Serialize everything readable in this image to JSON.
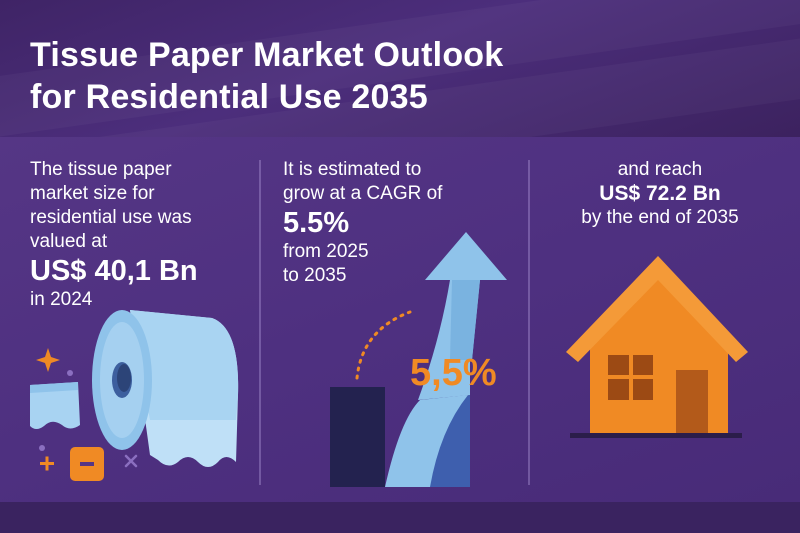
{
  "title": {
    "line1": "Tissue Paper Market Outlook",
    "line2": "for Residential Use 2035"
  },
  "col1": {
    "line1": "The tissue paper",
    "line2": "market size for",
    "line3": "residential use was",
    "line4": "valued at",
    "value": "US$ 40,1 Bn",
    "year": "in 2024"
  },
  "col2": {
    "line1": "It is estimated to",
    "line2": "grow at a CAGR of",
    "value": "5.5%",
    "line3": "from 2025",
    "line4": "to 2035",
    "badge": "5,5%"
  },
  "col3": {
    "line1": "and reach",
    "value": "US$ 72.2 Bn",
    "line2": "by the end of 2035"
  },
  "colors": {
    "accent_orange": "#f08a24",
    "tissue_blue": "#8fc3ea",
    "background_purple": "#4a2f78"
  }
}
